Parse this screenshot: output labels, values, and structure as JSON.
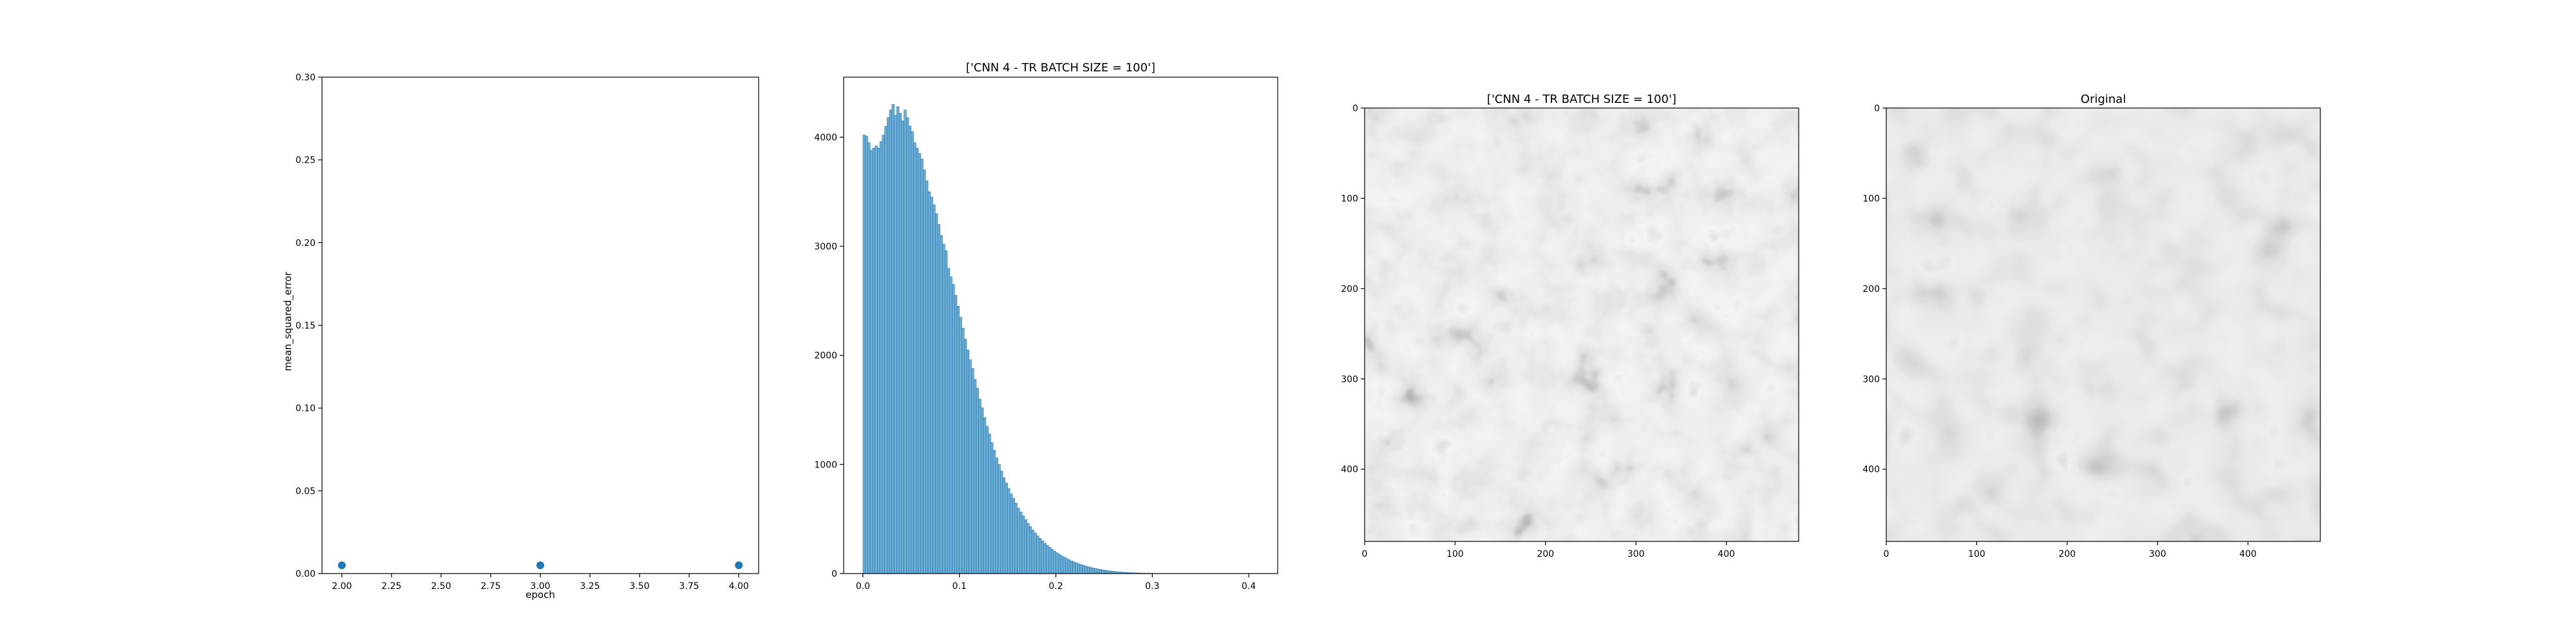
{
  "chart_data": [
    {
      "type": "scatter",
      "title": "",
      "xlabel": "epoch",
      "ylabel": "mean_squared_error",
      "xlim": [
        1.9,
        4.1
      ],
      "ylim": [
        0.0,
        0.3
      ],
      "x_ticks": [
        "2.00",
        "2.25",
        "2.50",
        "2.75",
        "3.00",
        "3.25",
        "3.50",
        "3.75",
        "4.00"
      ],
      "y_ticks": [
        "0.00",
        "0.05",
        "0.10",
        "0.15",
        "0.20",
        "0.25",
        "0.30"
      ],
      "points": [
        {
          "x": 2,
          "y": 0.005
        },
        {
          "x": 3,
          "y": 0.005
        },
        {
          "x": 4,
          "y": 0.005
        }
      ],
      "color": "#1f77b4",
      "grid": false
    },
    {
      "type": "bar",
      "title": "['CNN 4 - TR BATCH SIZE = 100']",
      "xlabel": "",
      "ylabel": "",
      "xlim": [
        -0.02,
        0.43
      ],
      "ylim": [
        0,
        4550
      ],
      "x_ticks": [
        "0.0",
        "0.1",
        "0.2",
        "0.3",
        "0.4"
      ],
      "y_ticks": [
        "0",
        "1000",
        "2000",
        "3000",
        "4000"
      ],
      "bin_width": 0.0025,
      "x_start": 0.0,
      "values": [
        4020,
        4010,
        3950,
        3880,
        3900,
        3920,
        3900,
        3960,
        4020,
        4100,
        4180,
        4250,
        4300,
        4200,
        4280,
        4220,
        4150,
        4250,
        4180,
        4100,
        4050,
        3950,
        3900,
        3850,
        3800,
        3700,
        3600,
        3500,
        3450,
        3380,
        3300,
        3200,
        3100,
        3020,
        2960,
        2800,
        2720,
        2650,
        2550,
        2450,
        2350,
        2250,
        2150,
        2050,
        1960,
        1880,
        1780,
        1700,
        1600,
        1520,
        1430,
        1350,
        1280,
        1200,
        1130,
        1060,
        1000,
        940,
        880,
        830,
        780,
        730,
        690,
        645,
        600,
        565,
        530,
        495,
        460,
        430,
        400,
        372,
        346,
        322,
        300,
        278,
        258,
        240,
        222,
        206,
        190,
        176,
        162,
        150,
        138,
        127,
        117,
        107,
        98,
        90,
        82,
        75,
        68,
        62,
        56,
        51,
        46,
        42,
        38,
        34,
        30,
        27,
        24,
        21,
        19,
        17,
        15,
        13,
        11,
        10,
        9,
        8,
        7,
        6,
        5,
        4,
        4,
        3,
        3,
        2,
        2,
        2,
        1,
        1,
        1,
        1,
        1,
        1,
        1,
        0,
        0,
        0,
        0,
        0,
        0,
        0,
        0,
        0,
        0,
        0,
        0,
        0,
        0,
        0,
        0,
        0,
        0,
        0,
        0,
        0,
        0,
        0,
        0,
        0,
        0,
        0,
        0,
        0,
        0,
        0,
        0,
        0,
        0,
        0
      ],
      "color": "#6baed6",
      "grid": false
    },
    {
      "type": "heatmap",
      "title": "['CNN 4 - TR BATCH SIZE = 100']",
      "x_ticks": [
        "0",
        "100",
        "200",
        "300",
        "400"
      ],
      "y_ticks": [
        "0",
        "100",
        "200",
        "300",
        "400"
      ],
      "extent": [
        0,
        480
      ],
      "colormap": "gray"
    },
    {
      "type": "heatmap",
      "title": "Original",
      "x_ticks": [
        "0",
        "100",
        "200",
        "300",
        "400"
      ],
      "y_ticks": [
        "0",
        "100",
        "200",
        "300",
        "400"
      ],
      "extent": [
        0,
        480
      ],
      "colormap": "gray"
    }
  ]
}
